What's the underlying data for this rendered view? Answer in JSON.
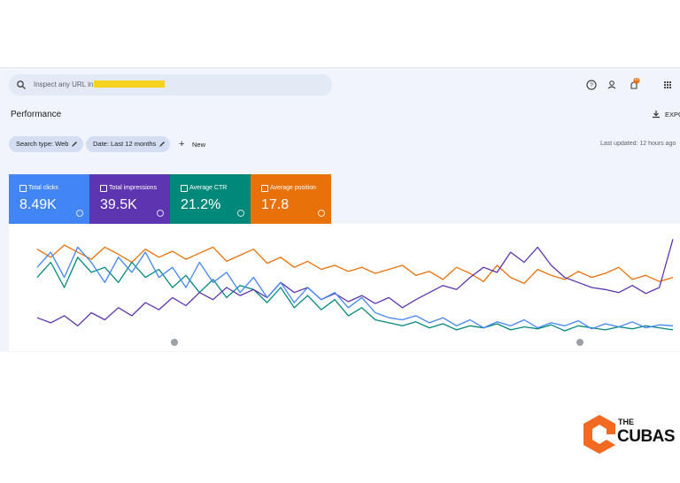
{
  "header": {
    "search_placeholder": "Inspect any URL in",
    "notification_count": "21"
  },
  "toolbar": {
    "title": "Performance",
    "export": "EXPO",
    "filters": [
      "Search type: Web",
      "Date: Last 12 months"
    ],
    "new": "New",
    "last_updated": "Last updated: 12 hours ago"
  },
  "metrics": [
    {
      "label": "Total clicks",
      "value": "8.49K"
    },
    {
      "label": "Total impressions",
      "value": "39.5K"
    },
    {
      "label": "Average CTR",
      "value": "21.2%"
    },
    {
      "label": "Average position",
      "value": "17.8"
    }
  ],
  "performance_chart": {
    "series": [
      {
        "name": "Total clicks",
        "color": "#4285f4",
        "values": [
          70,
          85,
          60,
          90,
          75,
          55,
          80,
          65,
          85,
          60,
          70,
          50,
          75,
          55,
          65,
          45,
          60,
          40,
          55,
          35,
          50,
          38,
          45,
          30,
          40,
          25,
          20,
          18,
          22,
          15,
          20,
          12,
          18,
          10,
          16,
          12,
          18,
          10,
          15,
          12,
          17,
          9,
          14,
          11,
          16,
          10,
          13,
          12
        ]
      },
      {
        "name": "Total impressions",
        "color": "#5e35b1",
        "values": [
          20,
          15,
          22,
          12,
          25,
          18,
          30,
          22,
          35,
          28,
          40,
          32,
          45,
          38,
          50,
          42,
          48,
          40,
          55,
          45,
          50,
          38,
          44,
          36,
          42,
          34,
          40,
          30,
          38,
          45,
          52,
          48,
          60,
          70,
          65,
          85,
          75,
          90,
          72,
          60,
          55,
          50,
          48,
          45,
          52,
          44,
          50,
          98
        ]
      },
      {
        "name": "Average CTR",
        "color": "#00897b",
        "values": [
          60,
          75,
          50,
          80,
          65,
          70,
          55,
          75,
          60,
          68,
          50,
          62,
          45,
          58,
          40,
          52,
          48,
          35,
          50,
          30,
          42,
          28,
          38,
          22,
          30,
          18,
          15,
          12,
          16,
          10,
          14,
          8,
          12,
          10,
          14,
          8,
          11,
          9,
          13,
          7,
          12,
          10,
          8,
          11,
          9,
          12,
          10,
          8
        ]
      },
      {
        "name": "Average position",
        "color": "#e8710a",
        "values": [
          88,
          80,
          92,
          85,
          78,
          90,
          83,
          75,
          88,
          80,
          86,
          78,
          84,
          90,
          76,
          82,
          88,
          74,
          80,
          70,
          76,
          68,
          72,
          66,
          70,
          64,
          68,
          72,
          62,
          66,
          58,
          70,
          64,
          56,
          72,
          60,
          54,
          68,
          62,
          58,
          66,
          60,
          64,
          70,
          58,
          62,
          56,
          60
        ]
      }
    ]
  },
  "logo": {
    "line1": "THE",
    "line2": "CUBAS"
  }
}
